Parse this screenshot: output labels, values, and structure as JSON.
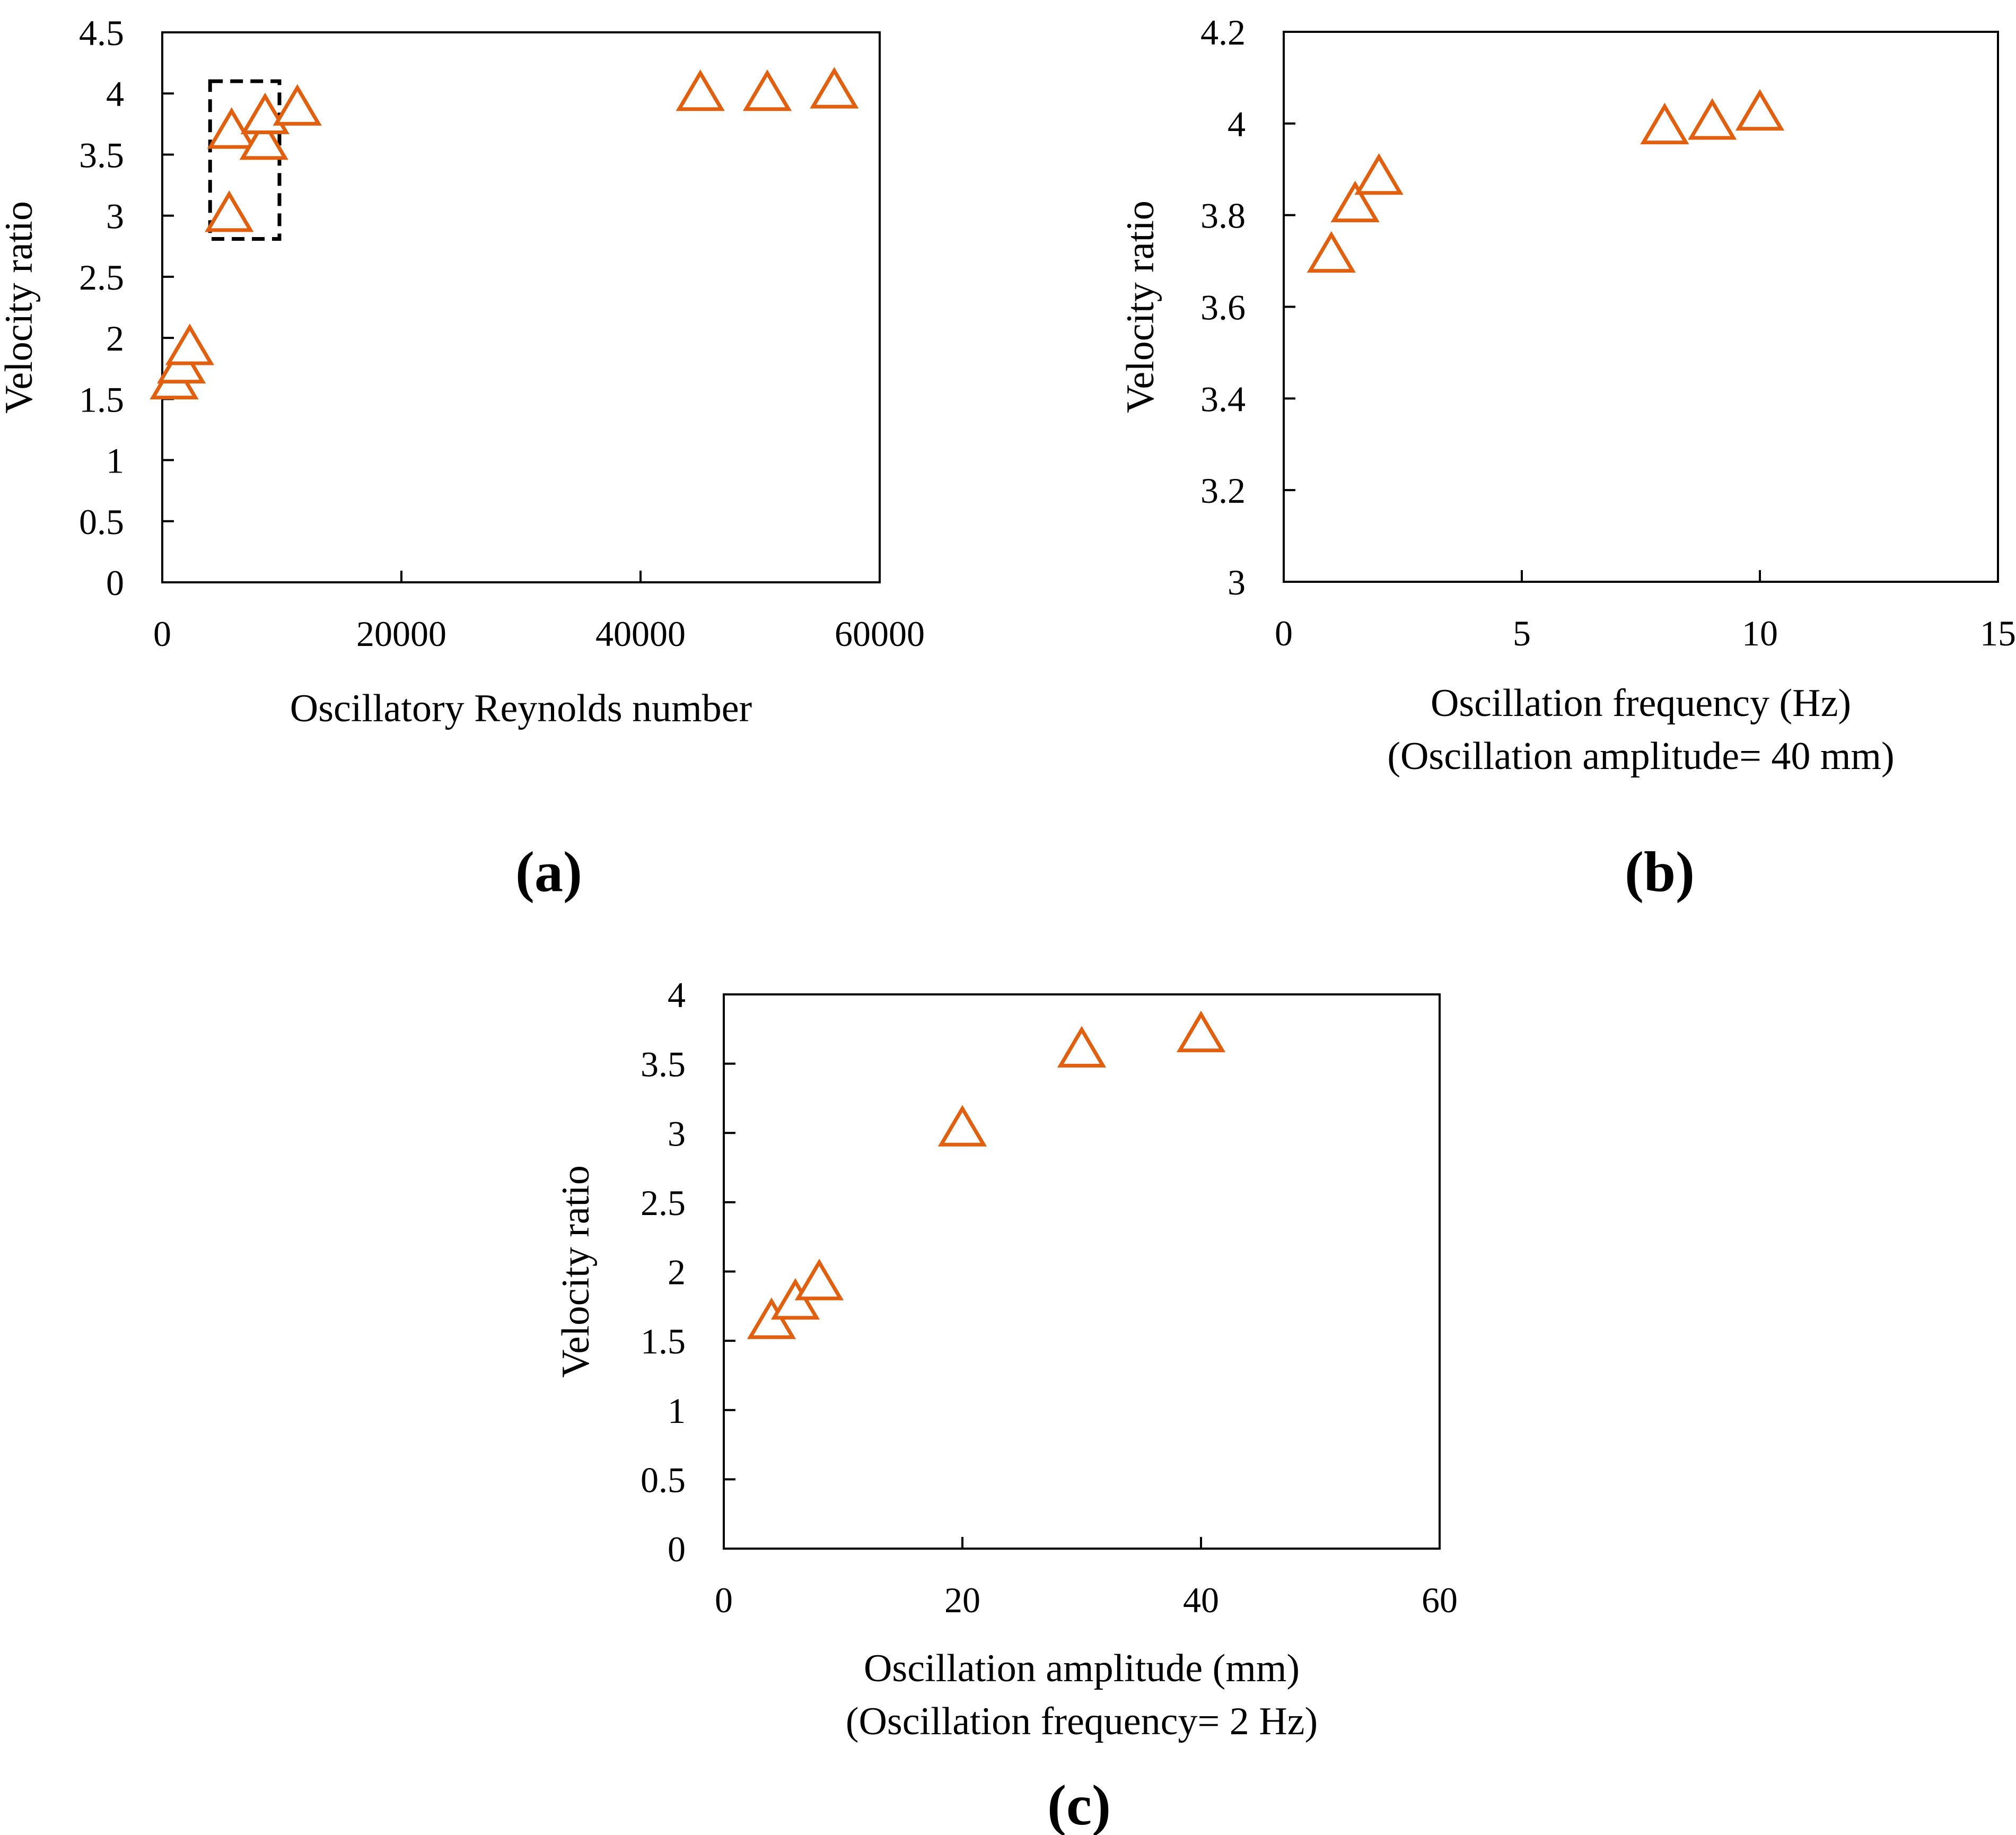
{
  "marker_color": "#E06010",
  "chart_data": [
    {
      "panel": "(a)",
      "type": "scatter",
      "title": "",
      "xlabel": "Oscillatory Reynolds number",
      "xlabel2": "",
      "ylabel": "Velocity ratio",
      "xlim": [
        0,
        60000
      ],
      "ylim": [
        0,
        4.5
      ],
      "xticks": [
        0,
        20000,
        40000,
        60000
      ],
      "xtick_labels": [
        "0",
        "20000",
        "40000",
        "60000"
      ],
      "yticks": [
        0,
        0.5,
        1,
        1.5,
        2,
        2.5,
        3,
        3.5,
        4,
        4.5
      ],
      "ytick_labels": [
        "0",
        "0.5",
        "1",
        "1.5",
        "2",
        "2.5",
        "3",
        "3.5",
        "4",
        "4.5"
      ],
      "marker": "triangle-open",
      "series": [
        {
          "name": "Velocity ratio",
          "x": [
            1000,
            1600,
            2300,
            5600,
            5800,
            8500,
            8600,
            11300,
            45000,
            50600,
            56200
          ],
          "y": [
            1.63,
            1.76,
            1.91,
            3.0,
            3.68,
            3.59,
            3.8,
            3.87,
            3.99,
            3.99,
            4.01
          ]
        }
      ],
      "annotations": [
        {
          "type": "dashed-rectangle",
          "x": [
            4000,
            9800
          ],
          "y": [
            2.81,
            4.1
          ]
        }
      ]
    },
    {
      "panel": "(b)",
      "type": "scatter",
      "title": "",
      "xlabel": "Oscillation frequency (Hz)",
      "xlabel2": "(Oscillation amplitude= 40 mm)",
      "ylabel": "Velocity ratio",
      "xlim": [
        0,
        15
      ],
      "ylim": [
        3,
        4.2
      ],
      "xticks": [
        0,
        5,
        10,
        15
      ],
      "xtick_labels": [
        "0",
        "5",
        "10",
        "15"
      ],
      "yticks": [
        3,
        3.2,
        3.4,
        3.6,
        3.8,
        4,
        4.2
      ],
      "ytick_labels": [
        "3",
        "3.2",
        "3.4",
        "3.6",
        "3.8",
        "4",
        "4.2"
      ],
      "marker": "triangle-open",
      "series": [
        {
          "name": "Velocity ratio",
          "x": [
            1,
            1.5,
            2,
            8,
            9,
            10
          ],
          "y": [
            3.71,
            3.82,
            3.88,
            3.99,
            4.0,
            4.02
          ]
        }
      ],
      "annotations": []
    },
    {
      "panel": "(c)",
      "type": "scatter",
      "title": "",
      "xlabel": "Oscillation amplitude (mm)",
      "xlabel2": "(Oscillation frequency= 2 Hz)",
      "ylabel": "Velocity ratio",
      "xlim": [
        0,
        60
      ],
      "ylim": [
        0,
        4
      ],
      "xticks": [
        0,
        20,
        40,
        60
      ],
      "xtick_labels": [
        "0",
        "20",
        "40",
        "60"
      ],
      "yticks": [
        0,
        0.5,
        1,
        1.5,
        2,
        2.5,
        3,
        3.5,
        4
      ],
      "ytick_labels": [
        "0",
        "0.5",
        "1",
        "1.5",
        "2",
        "2.5",
        "3",
        "3.5",
        "4"
      ],
      "marker": "triangle-open",
      "series": [
        {
          "name": "Velocity ratio",
          "x": [
            4,
            6,
            8,
            20,
            30,
            40
          ],
          "y": [
            1.63,
            1.77,
            1.91,
            3.02,
            3.59,
            3.7
          ]
        }
      ],
      "annotations": []
    }
  ]
}
